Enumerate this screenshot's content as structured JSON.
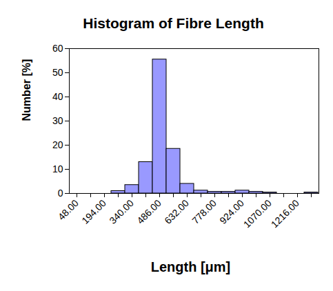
{
  "chart_data": {
    "type": "bar",
    "title": "Histogram of Fibre Length",
    "x_label": "Length [μm]",
    "y_label": "Number [%]",
    "categories": [
      "48.00",
      null,
      "194.00",
      null,
      "340.00",
      null,
      "486.00",
      null,
      "632.00",
      null,
      "778.00",
      null,
      "924.00",
      null,
      "1070.00",
      null,
      "1216.00",
      null
    ],
    "values": [
      0,
      0,
      0,
      1,
      3.5,
      13,
      55.5,
      18.5,
      4,
      1.2,
      0.7,
      0.7,
      1.2,
      0.7,
      0.4,
      0,
      0,
      0.4
    ],
    "color": "#9999ff",
    "ylim": [
      0,
      60
    ],
    "yticks": [
      0,
      10,
      20,
      30,
      40,
      50,
      60
    ],
    "grid": false
  }
}
